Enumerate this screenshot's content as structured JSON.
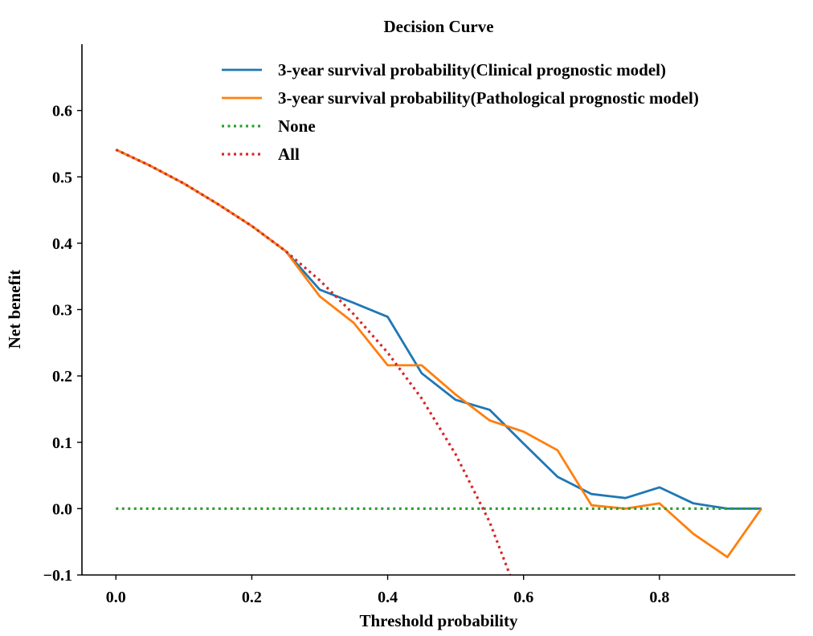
{
  "chart_data": {
    "type": "line",
    "title": "Decision Curve",
    "xlabel": "Threshold probability",
    "ylabel": "Net benefit",
    "xlim": [
      -0.05,
      1.0
    ],
    "ylim": [
      -0.1,
      0.7
    ],
    "xticks": [
      0.0,
      0.2,
      0.4,
      0.6,
      0.8
    ],
    "xtick_labels": [
      "0.0",
      "0.2",
      "0.4",
      "0.6",
      "0.8"
    ],
    "yticks": [
      -0.1,
      0.0,
      0.1,
      0.2,
      0.3,
      0.4,
      0.5,
      0.6
    ],
    "ytick_labels": [
      "−0.1",
      "0.0",
      "0.1",
      "0.2",
      "0.3",
      "0.4",
      "0.5",
      "0.6"
    ],
    "grid": false,
    "legend_position": "top-right",
    "series": [
      {
        "name": "3-year survival probability(Clinical prognostic model)",
        "color": "#1f77b4",
        "style": "solid",
        "x": [
          0.0,
          0.05,
          0.1,
          0.15,
          0.2,
          0.25,
          0.3,
          0.35,
          0.4,
          0.45,
          0.5,
          0.55,
          0.6,
          0.65,
          0.7,
          0.75,
          0.8,
          0.85,
          0.9,
          0.95
        ],
        "y": [
          0.541,
          0.517,
          0.49,
          0.459,
          0.426,
          0.388,
          0.33,
          0.31,
          0.289,
          0.204,
          0.164,
          0.149,
          0.098,
          0.048,
          0.022,
          0.016,
          0.032,
          0.008,
          0.0,
          0.0
        ]
      },
      {
        "name": "3-year survival probability(Pathological prognostic model)",
        "color": "#ff7f0e",
        "style": "solid",
        "x": [
          0.0,
          0.05,
          0.1,
          0.15,
          0.2,
          0.25,
          0.3,
          0.35,
          0.4,
          0.45,
          0.5,
          0.55,
          0.6,
          0.65,
          0.7,
          0.75,
          0.8,
          0.85,
          0.9,
          0.95
        ],
        "y": [
          0.541,
          0.517,
          0.49,
          0.459,
          0.426,
          0.388,
          0.32,
          0.28,
          0.216,
          0.216,
          0.172,
          0.133,
          0.116,
          0.088,
          0.005,
          0.0,
          0.008,
          -0.038,
          -0.073,
          0.0
        ]
      },
      {
        "name": "None",
        "color": "#2ca02c",
        "style": "dotted",
        "x": [
          0.0,
          0.95
        ],
        "y": [
          0.0,
          0.0
        ]
      },
      {
        "name": "All",
        "color": "#d62728",
        "style": "dotted",
        "x": [
          0.0,
          0.05,
          0.1,
          0.15,
          0.2,
          0.25,
          0.3,
          0.35,
          0.4,
          0.45,
          0.5,
          0.55,
          0.58
        ],
        "y": [
          0.541,
          0.517,
          0.49,
          0.459,
          0.426,
          0.388,
          0.344,
          0.293,
          0.235,
          0.166,
          0.082,
          -0.02,
          -0.1
        ]
      }
    ]
  }
}
